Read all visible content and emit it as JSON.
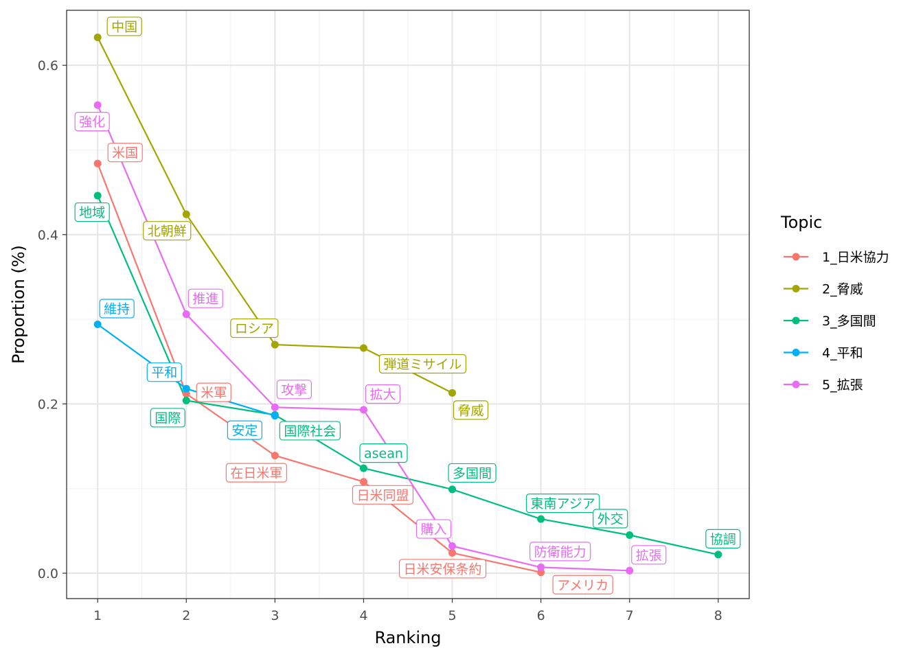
{
  "chart_data": {
    "type": "line",
    "xlabel": "Ranking",
    "ylabel": "Proportion (%)",
    "xlim": [
      0.65,
      8.35
    ],
    "ylim": [
      -0.03,
      0.665
    ],
    "x_ticks": [
      1,
      2,
      3,
      4,
      5,
      6,
      7,
      8
    ],
    "x_tick_labels": [
      "1",
      "2",
      "3",
      "4",
      "5",
      "6",
      "7",
      "8"
    ],
    "y_ticks": [
      0.0,
      0.2,
      0.4,
      0.6
    ],
    "y_tick_labels": [
      "0.0",
      "0.2",
      "0.4",
      "0.6"
    ],
    "grid": true,
    "legend": {
      "title": "Topic",
      "position": "right"
    },
    "series": [
      {
        "name": "1_日米協力",
        "color": "#F8766D",
        "points": [
          {
            "x": 1,
            "y": 0.484,
            "label": "米国"
          },
          {
            "x": 2,
            "y": 0.212,
            "label": "米軍"
          },
          {
            "x": 3,
            "y": 0.139,
            "label": "在日米軍"
          },
          {
            "x": 4,
            "y": 0.108,
            "label": "日米同盟"
          },
          {
            "x": 5,
            "y": 0.024,
            "label": "日米安保条約"
          },
          {
            "x": 6,
            "y": 0.001,
            "label": "アメリカ"
          }
        ]
      },
      {
        "name": "2_脅威",
        "color": "#A3A500",
        "points": [
          {
            "x": 1,
            "y": 0.633,
            "label": "中国"
          },
          {
            "x": 2,
            "y": 0.424,
            "label": "北朝鮮"
          },
          {
            "x": 3,
            "y": 0.27,
            "label": "ロシア"
          },
          {
            "x": 4,
            "y": 0.266,
            "label": "弾道ミサイル"
          },
          {
            "x": 5,
            "y": 0.213,
            "label": "脅威"
          }
        ]
      },
      {
        "name": "3_多国間",
        "color": "#00BF7D",
        "points": [
          {
            "x": 1,
            "y": 0.446,
            "label": "地域"
          },
          {
            "x": 2,
            "y": 0.204,
            "label": "国際"
          },
          {
            "x": 3,
            "y": 0.187,
            "label": "国際社会"
          },
          {
            "x": 4,
            "y": 0.124,
            "label": "asean"
          },
          {
            "x": 5,
            "y": 0.099,
            "label": "多国間"
          },
          {
            "x": 6,
            "y": 0.064,
            "label": "東南アジア"
          },
          {
            "x": 7,
            "y": 0.045,
            "label": "外交"
          },
          {
            "x": 8,
            "y": 0.022,
            "label": "協調"
          }
        ]
      },
      {
        "name": "4_平和",
        "color": "#00B0F6",
        "points": [
          {
            "x": 1,
            "y": 0.294,
            "label": "維持"
          },
          {
            "x": 2,
            "y": 0.218,
            "label": "平和"
          },
          {
            "x": 3,
            "y": 0.186,
            "label": "安定"
          }
        ]
      },
      {
        "name": "5_拡張",
        "color": "#E76BF3",
        "points": [
          {
            "x": 1,
            "y": 0.553,
            "label": "強化"
          },
          {
            "x": 2,
            "y": 0.306,
            "label": "推進"
          },
          {
            "x": 3,
            "y": 0.196,
            "label": "攻撃"
          },
          {
            "x": 4,
            "y": 0.193,
            "label": "拡大"
          },
          {
            "x": 5,
            "y": 0.032,
            "label": "購入"
          },
          {
            "x": 6,
            "y": 0.007,
            "label": "防衛能力"
          },
          {
            "x": 7,
            "y": 0.003,
            "label": "拡張"
          }
        ]
      }
    ]
  }
}
